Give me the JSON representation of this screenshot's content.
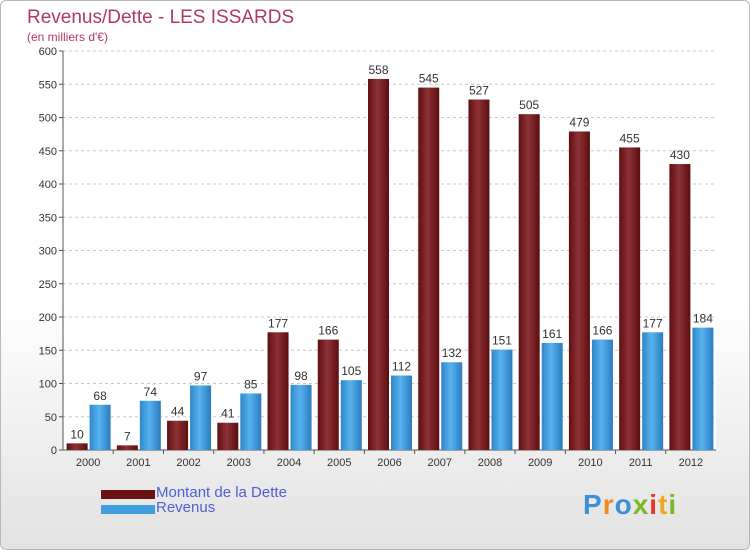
{
  "chart_data": {
    "type": "bar",
    "title": "Revenus/Dette - LES ISSARDS",
    "subtitle": "(en milliers d'€)",
    "categories": [
      "2000",
      "2001",
      "2002",
      "2003",
      "2004",
      "2005",
      "2006",
      "2007",
      "2008",
      "2009",
      "2010",
      "2011",
      "2012"
    ],
    "series": [
      {
        "name": "Montant de la Dette",
        "color": "#7a1e22",
        "values": [
          10,
          7,
          44,
          41,
          177,
          166,
          558,
          545,
          527,
          505,
          479,
          455,
          430
        ]
      },
      {
        "name": "Revenus",
        "color": "#3e9ee0",
        "values": [
          68,
          74,
          97,
          85,
          98,
          105,
          112,
          132,
          151,
          161,
          166,
          177,
          184
        ]
      }
    ],
    "ylim": [
      0,
      600
    ],
    "yticks": [
      0,
      50,
      100,
      150,
      200,
      250,
      300,
      350,
      400,
      450,
      500,
      550,
      600
    ],
    "grid": true,
    "legend_position": "bottom-left"
  },
  "logo": {
    "text": "Proxiti"
  }
}
